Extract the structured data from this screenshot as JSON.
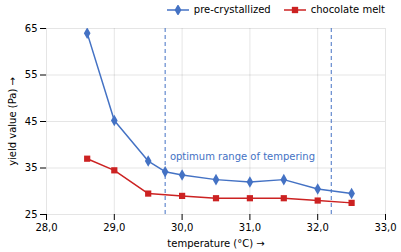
{
  "chart_data": {
    "type": "line",
    "xlabel": "temperature (°C)",
    "ylabel": "yield value (Pa)",
    "series": [
      {
        "name": "pre-crystallized",
        "color": "#4472C4",
        "marker": "diamond",
        "x": [
          28.6,
          29.0,
          29.5,
          29.75,
          30.0,
          30.5,
          31.0,
          31.5,
          32.0,
          32.5
        ],
        "values": [
          64.0,
          45.2,
          36.5,
          34.2,
          33.5,
          32.5,
          32.0,
          32.5,
          30.5,
          29.5
        ]
      },
      {
        "name": "chocolate melt",
        "color": "#CC2222",
        "marker": "square",
        "x": [
          28.6,
          29.0,
          29.5,
          30.0,
          30.5,
          31.0,
          31.5,
          32.0,
          32.5
        ],
        "values": [
          37.0,
          34.5,
          29.5,
          29.0,
          28.5,
          28.5,
          28.5,
          28.0,
          27.5
        ]
      }
    ],
    "xlim": [
      28.0,
      33.0
    ],
    "ylim": [
      25,
      65
    ],
    "xticks": [
      {
        "value": 28.0,
        "label": "28,0"
      },
      {
        "value": 29.0,
        "label": "29,0"
      },
      {
        "value": 30.0,
        "label": "30,0"
      },
      {
        "value": 31.0,
        "label": "31,0"
      },
      {
        "value": 32.0,
        "label": "32,0"
      },
      {
        "value": 33.0,
        "label": "33,0"
      }
    ],
    "yticks": [
      25,
      35,
      45,
      55,
      65
    ],
    "grid": true,
    "legend": "upper right",
    "vlines": [
      {
        "x": 29.75,
        "color": "#4472C4",
        "line_style": "dashed"
      },
      {
        "x": 32.2,
        "color": "#4472C4",
        "line_style": "dashed"
      }
    ],
    "annotations": [
      {
        "text": "optimum range of tempering",
        "x": 29.82,
        "y": 36.8,
        "color": "#4472C4"
      }
    ]
  }
}
